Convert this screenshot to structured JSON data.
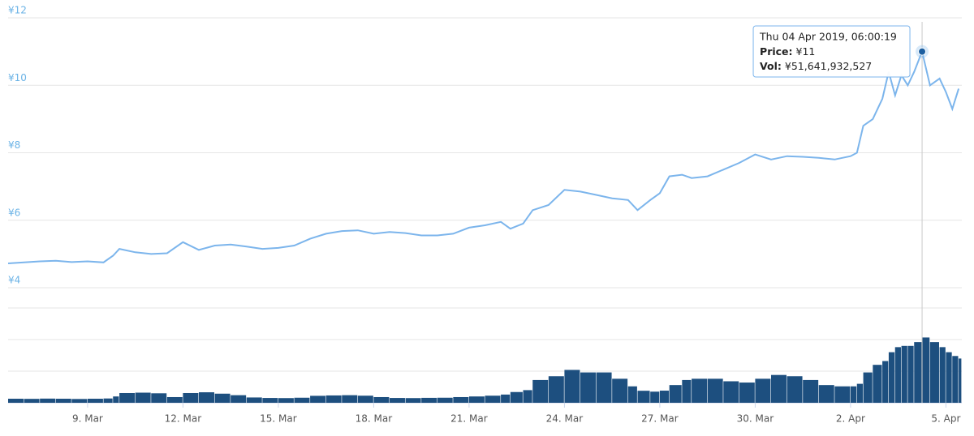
{
  "chart_data": [
    {
      "type": "line",
      "color": "#7cb5ec",
      "x": [
        6.5,
        7,
        7.5,
        8,
        8.5,
        9,
        9.5,
        9.8,
        10,
        10.5,
        11,
        11.5,
        12,
        12.5,
        13,
        13.5,
        14,
        14.5,
        15,
        15.5,
        16,
        16.5,
        17,
        17.5,
        18,
        18.5,
        19,
        19.5,
        20,
        20.5,
        21,
        21.5,
        22,
        22.3,
        22.7,
        23,
        23.5,
        24,
        24.5,
        25,
        25.5,
        26,
        26.3,
        26.7,
        27,
        27.3,
        27.7,
        28,
        28.5,
        29,
        29.5,
        30,
        30.5,
        31,
        31.5,
        32,
        32.5,
        33,
        33.2,
        33.4,
        33.7,
        34,
        34.2,
        34.4,
        34.6,
        34.8,
        35,
        35.25,
        35.5,
        35.8,
        36,
        36.2,
        36.4
      ],
      "values": [
        4.72,
        4.75,
        4.78,
        4.8,
        4.76,
        4.78,
        4.75,
        4.95,
        5.15,
        5.05,
        5.0,
        5.02,
        5.35,
        5.12,
        5.25,
        5.28,
        5.22,
        5.15,
        5.18,
        5.25,
        5.45,
        5.6,
        5.68,
        5.7,
        5.6,
        5.65,
        5.62,
        5.55,
        5.55,
        5.6,
        5.78,
        5.85,
        5.95,
        5.75,
        5.9,
        6.3,
        6.45,
        6.9,
        6.85,
        6.75,
        6.65,
        6.6,
        6.3,
        6.6,
        6.8,
        7.3,
        7.35,
        7.25,
        7.3,
        7.5,
        7.7,
        7.95,
        7.8,
        7.9,
        7.88,
        7.85,
        7.8,
        7.9,
        8.0,
        8.8,
        9.0,
        9.6,
        10.4,
        9.7,
        10.3,
        10.0,
        10.4,
        11,
        10.0,
        10.2,
        9.8,
        9.3,
        9.9
      ],
      "xlim": [
        6.5,
        36.5
      ],
      "ylim": [
        4,
        12
      ],
      "yticks": [
        {
          "value": 4,
          "label": "¥4"
        },
        {
          "value": 6,
          "label": "¥6"
        },
        {
          "value": 8,
          "label": "¥8"
        },
        {
          "value": 10,
          "label": "¥10"
        },
        {
          "value": 12,
          "label": "¥12"
        }
      ],
      "grid": true,
      "tooltip": {
        "x": 35.25,
        "date": "Thu 04 Apr 2019, 06:00:19",
        "price_label": "Price:",
        "price": "¥11",
        "vol_label": "Vol:",
        "vol": "¥51,641,932,527"
      }
    },
    {
      "type": "bar",
      "color": "#1d4f7f",
      "x": [
        6.5,
        7,
        7.5,
        8,
        8.5,
        9,
        9.5,
        9.8,
        10,
        10.5,
        11,
        11.5,
        12,
        12.5,
        13,
        13.5,
        14,
        14.5,
        15,
        15.5,
        16,
        16.5,
        17,
        17.5,
        18,
        18.5,
        19,
        19.5,
        20,
        20.5,
        21,
        21.5,
        22,
        22.3,
        22.7,
        23,
        23.5,
        24,
        24.5,
        25,
        25.5,
        26,
        26.3,
        26.7,
        27,
        27.3,
        27.7,
        28,
        28.5,
        29,
        29.5,
        30,
        30.5,
        31,
        31.5,
        32,
        32.5,
        33,
        33.2,
        33.4,
        33.7,
        34,
        34.2,
        34.4,
        34.6,
        34.8,
        35,
        35.25,
        35.5,
        35.8,
        36,
        36.2,
        36.4
      ],
      "values": [
        3200000000,
        3100000000,
        3300000000,
        3200000000,
        3000000000,
        3200000000,
        3400000000,
        5000000000,
        7700000000,
        8000000000,
        7500000000,
        4500000000,
        7700000000,
        8300000000,
        7200000000,
        6000000000,
        4200000000,
        3800000000,
        3700000000,
        4000000000,
        5500000000,
        5800000000,
        6000000000,
        5600000000,
        4500000000,
        3800000000,
        3700000000,
        3900000000,
        4000000000,
        4500000000,
        5000000000,
        5600000000,
        6500000000,
        8500000000,
        10000000000,
        18000000000,
        21000000000,
        26000000000,
        24000000000,
        24000000000,
        19000000000,
        13000000000,
        9500000000,
        8800000000,
        9600000000,
        14000000000,
        18000000000,
        19000000000,
        19000000000,
        17000000000,
        16000000000,
        19000000000,
        22000000000,
        21000000000,
        18000000000,
        14000000000,
        13000000000,
        13000000000,
        15000000000,
        24000000000,
        30000000000,
        33000000000,
        40000000000,
        44000000000,
        45000000000,
        45000000000,
        48000000000,
        51641932527,
        48000000000,
        44000000000,
        40000000000,
        37000000000,
        35000000000
      ],
      "xlim": [
        6.5,
        36.5
      ],
      "xticks": [
        {
          "value": 9,
          "label": "9. Mar"
        },
        {
          "value": 12,
          "label": "12. Mar"
        },
        {
          "value": 15,
          "label": "15. Mar"
        },
        {
          "value": 18,
          "label": "18. Mar"
        },
        {
          "value": 21,
          "label": "21. Mar"
        },
        {
          "value": 24,
          "label": "24. Mar"
        },
        {
          "value": 27,
          "label": "27. Mar"
        },
        {
          "value": 30,
          "label": "30. Mar"
        },
        {
          "value": 33,
          "label": "2. Apr"
        },
        {
          "value": 36,
          "label": "5. Apr"
        }
      ],
      "ylim": [
        0,
        75000000000
      ],
      "yticks": [
        0,
        25000000000,
        50000000000,
        75000000000
      ],
      "grid": true
    }
  ]
}
